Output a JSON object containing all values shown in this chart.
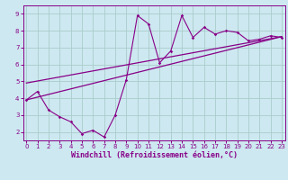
{
  "title": "",
  "xlabel": "Windchill (Refroidissement éolien,°C)",
  "bg_color": "#cde8f0",
  "line_color": "#880088",
  "grid_color": "#aacccc",
  "scatter_x": [
    0,
    1,
    2,
    3,
    4,
    5,
    6,
    7,
    8,
    9,
    10,
    11,
    12,
    13,
    14,
    15,
    16,
    17,
    18,
    19,
    20,
    21,
    22,
    23
  ],
  "scatter_y": [
    3.9,
    4.4,
    3.3,
    2.9,
    2.6,
    1.9,
    2.1,
    1.7,
    3.0,
    5.1,
    8.9,
    8.4,
    6.1,
    6.8,
    8.9,
    7.6,
    8.2,
    7.8,
    8.0,
    7.9,
    7.4,
    7.5,
    7.7,
    7.6
  ],
  "trend1_x": [
    0,
    23
  ],
  "trend1_y": [
    3.9,
    7.65
  ],
  "trend2_x": [
    0,
    23
  ],
  "trend2_y": [
    4.9,
    7.65
  ],
  "xlim": [
    -0.3,
    23.3
  ],
  "ylim": [
    1.5,
    9.5
  ],
  "xticks": [
    0,
    1,
    2,
    3,
    4,
    5,
    6,
    7,
    8,
    9,
    10,
    11,
    12,
    13,
    14,
    15,
    16,
    17,
    18,
    19,
    20,
    21,
    22,
    23
  ],
  "yticks": [
    2,
    3,
    4,
    5,
    6,
    7,
    8,
    9
  ],
  "tick_fontsize": 5.0,
  "xlabel_fontsize": 6.0
}
